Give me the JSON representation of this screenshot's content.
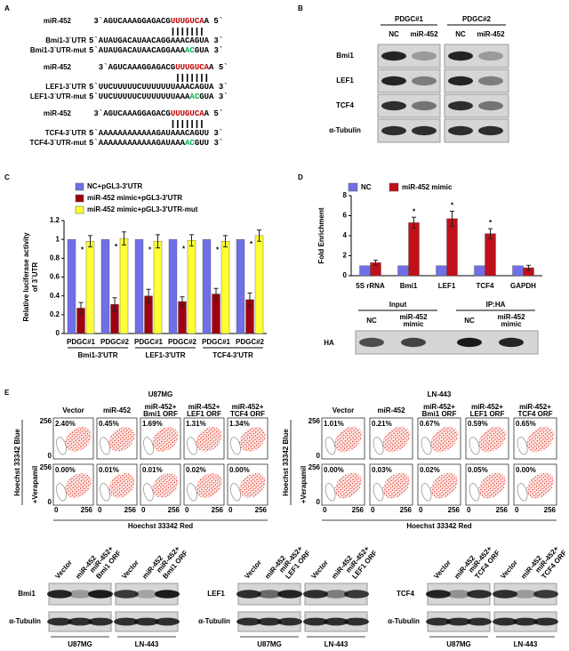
{
  "panel_labels": [
    "A",
    "B",
    "C",
    "D",
    "E"
  ],
  "colors": {
    "mirna": "#c00000",
    "mutation": "#00b050"
  },
  "panel_a": {
    "rows": [
      {
        "label": "miR-452",
        "seq": [
          "3`AGUCAAAGGAGACG",
          "UUUGUCA",
          "A 5`"
        ]
      },
      {
        "label": "Bmi1-3`UTR",
        "seq": [
          "5`AUAUGACAUAACAGGAAACAGUA 3`"
        ]
      },
      {
        "label": "Bmi1-3`UTR-mut",
        "seq": [
          "5`AUAUGACAUAACAGGAAA",
          "AC",
          "GUA 3`"
        ]
      },
      {
        "label": "miR-452",
        "seq": [
          "3`AGUCAAAGGAGACG",
          "UUUGUCA",
          "A 5`"
        ]
      },
      {
        "label": "LEF1-3`UTR",
        "seq": [
          "5`UUCUUUUUCUUUUUUUAAACAGUA 3`"
        ]
      },
      {
        "label": "LEF1-3`UTR-mut",
        "seq": [
          "5`UUCUUUUUCUUUUUUUAAA",
          "AC",
          "GUA 3`"
        ]
      },
      {
        "label": "miR-452",
        "seq": [
          "3`AGUCAAAGGAGACG",
          "UUUGUCA",
          "A 5`"
        ]
      },
      {
        "label": "TCF4-3`UTR",
        "seq": [
          "5`AAAAAAAAAAAAGAUAAACAGUU 3`"
        ]
      },
      {
        "label": "TCF4-3`UTR-mut",
        "seq": [
          "5`AAAAAAAAAAAAGAUAAA",
          "AC",
          "GUU 3`"
        ]
      }
    ]
  },
  "panel_b": {
    "groups": [
      "PDGC#1",
      "PDGC#2"
    ],
    "lanes": [
      "NC",
      "miR-452"
    ],
    "proteins": [
      "Bmi1",
      "LEF1",
      "TCF4",
      "α-Tubulin"
    ]
  },
  "chart_data": [
    {
      "type": "bar",
      "ylabel": [
        "Relative luciferase activity",
        "of 3`UTR"
      ],
      "categories": [
        "PDGC#1",
        "PDGC#2",
        "PDGC#1",
        "PDGC#2",
        "PDGC#1",
        "PDGC#2"
      ],
      "groups": [
        "Bmi1-3'UTR",
        "LEF1-3'UTR",
        "TCF4-3'UTR"
      ],
      "series": [
        {
          "name": "NC+pGL3-3'UTR",
          "color": "#6f6fe8",
          "values": [
            1,
            1,
            1,
            1,
            1,
            1
          ]
        },
        {
          "name": "miR-452 mimic+pGL3-3'UTR",
          "color": "#a00010",
          "values": [
            0.27,
            0.31,
            0.4,
            0.34,
            0.42,
            0.36
          ],
          "errors": [
            0.06,
            0.07,
            0.07,
            0.05,
            0.06,
            0.07
          ]
        },
        {
          "name": "miR-452 mimic+pGL3-3'UTR-mut",
          "color": "#ffff33",
          "values": [
            0.98,
            1.01,
            0.98,
            0.99,
            0.98,
            1.04
          ],
          "errors": [
            0.06,
            0.07,
            0.07,
            0.06,
            0.06,
            0.06
          ]
        }
      ],
      "markers": [
        "*",
        "*",
        "*",
        "*",
        "*",
        "*"
      ],
      "ylim": [
        0,
        1.2
      ],
      "yticks": [
        0,
        0.2,
        0.4,
        0.6,
        0.8,
        1,
        1.2
      ]
    },
    {
      "type": "bar",
      "ylabel": "Fold Enrichment",
      "categories": [
        "5S rRNA",
        "Bmi1",
        "LEF1",
        "TCF4",
        "GAPDH"
      ],
      "series": [
        {
          "name": "NC",
          "color": "#6f6fe8",
          "values": [
            1,
            1,
            1,
            1,
            1
          ]
        },
        {
          "name": "miR-452 mimic",
          "color": "#c0101a",
          "values": [
            1.3,
            5.3,
            5.7,
            4.2,
            0.8
          ],
          "errors": [
            0.25,
            0.55,
            0.75,
            0.5,
            0.25
          ]
        }
      ],
      "markers": [
        null,
        "*",
        "*",
        "*",
        null
      ],
      "ylim": [
        0,
        8
      ],
      "yticks": [
        0,
        2,
        4,
        6,
        8
      ]
    }
  ],
  "panel_d_blot": {
    "groups": [
      "Input",
      "IP:HA"
    ],
    "lanes": [
      [
        "NC"
      ],
      [
        "miR-452",
        "mimic"
      ]
    ],
    "protein": "HA"
  },
  "panel_e": {
    "cell_lines": [
      "U87MG",
      "LN-443"
    ],
    "conditions": [
      [
        "Vector"
      ],
      [
        "miR-452"
      ],
      [
        "miR-452+",
        "Bmi1 ORF"
      ],
      [
        "miR-452+",
        "LEF1 ORF"
      ],
      [
        "miR-452+",
        "TCF4 ORF"
      ]
    ],
    "percent": [
      [
        [
          "2.40%",
          "0.45%",
          "1.69%",
          "1.31%",
          "1.34%"
        ],
        [
          "0.00%",
          "0.01%",
          "0.01%",
          "0.02%",
          "0.00%"
        ]
      ],
      [
        [
          "1.01%",
          "0.21%",
          "0.67%",
          "0.59%",
          "0.65%"
        ],
        [
          "0.00%",
          "0.03%",
          "0.02%",
          "0.05%",
          "0.00%"
        ]
      ]
    ],
    "y_label": "Hoechst 33342 Blue",
    "x_label": "Hoechst 33342 Red",
    "row_label": "+Verapamil",
    "axis_ticks": [
      "0",
      "256"
    ]
  },
  "panel_e_blots": {
    "groups": [
      {
        "protein": "Bmi1",
        "lanes": [
          [
            "Vector"
          ],
          [
            "miR-452"
          ],
          [
            "miR-452+",
            "Bmi1 ORF"
          ]
        ]
      },
      {
        "protein": "LEF1",
        "lanes": [
          [
            "Vector"
          ],
          [
            "miR-452"
          ],
          [
            "miR-452+",
            "LEF1 ORF"
          ]
        ]
      },
      {
        "protein": "TCF4",
        "lanes": [
          [
            "Vector"
          ],
          [
            "miR-452"
          ],
          [
            "miR-452+",
            "TCF4 ORF"
          ]
        ]
      }
    ],
    "loading": "α-Tubulin"
  }
}
